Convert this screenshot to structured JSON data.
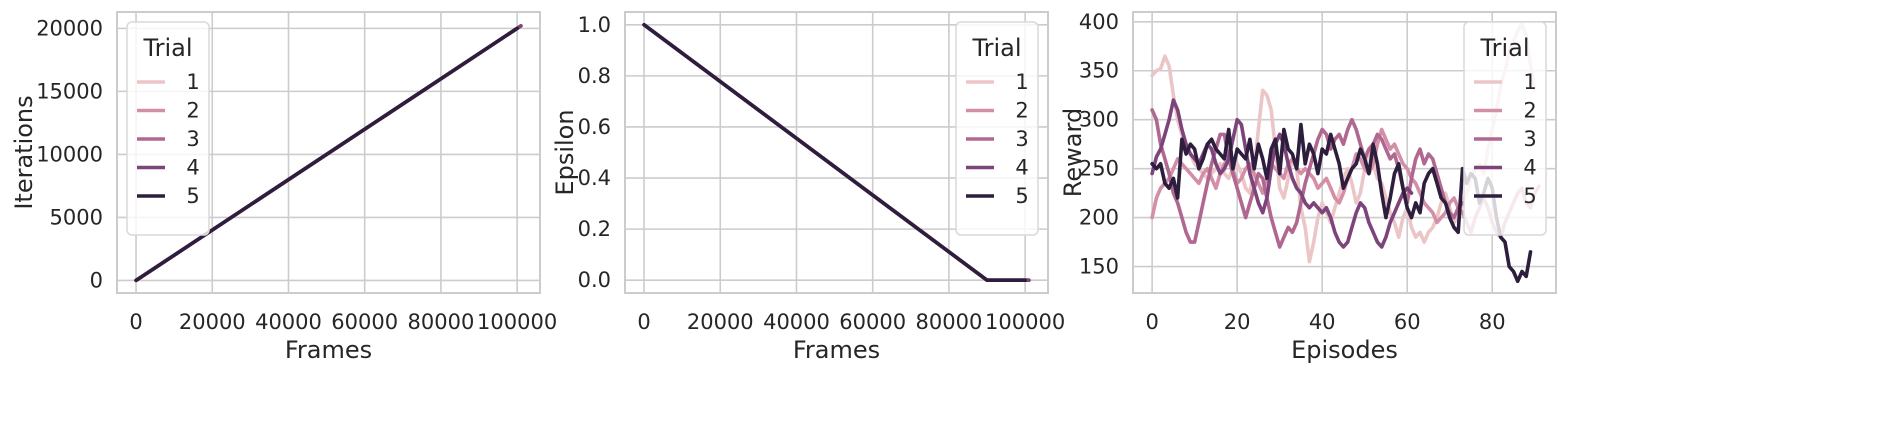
{
  "chart_data": [
    {
      "type": "line",
      "xlabel": "Frames",
      "ylabel": "Iterations",
      "xlim": [
        -5000,
        106000
      ],
      "ylim": [
        -1000,
        21300
      ],
      "xticks": [
        0,
        20000,
        40000,
        60000,
        80000,
        100000
      ],
      "yticks": [
        0,
        5000,
        10000,
        15000,
        20000
      ],
      "grid": true,
      "legend": {
        "title": "Trial",
        "placement": "top-left",
        "entries": [
          "1",
          "2",
          "3",
          "4",
          "5"
        ]
      },
      "series": [
        {
          "name": "1",
          "x": [
            0,
            101000
          ],
          "y": [
            0,
            20200
          ]
        },
        {
          "name": "2",
          "x": [
            0,
            101000
          ],
          "y": [
            0,
            20200
          ]
        },
        {
          "name": "3",
          "x": [
            0,
            101000
          ],
          "y": [
            0,
            20200
          ]
        },
        {
          "name": "4",
          "x": [
            0,
            101000
          ],
          "y": [
            0,
            20200
          ]
        },
        {
          "name": "5",
          "x": [
            0,
            100000
          ],
          "y": [
            0,
            20000
          ]
        }
      ]
    },
    {
      "type": "line",
      "xlabel": "Frames",
      "ylabel": "Epsilon",
      "xlim": [
        -5000,
        106000
      ],
      "ylim": [
        -0.05,
        1.05
      ],
      "xticks": [
        0,
        20000,
        40000,
        60000,
        80000,
        100000
      ],
      "yticks": [
        0.0,
        0.2,
        0.4,
        0.6,
        0.8,
        1.0
      ],
      "grid": true,
      "legend": {
        "title": "Trial",
        "placement": "top-right",
        "entries": [
          "1",
          "2",
          "3",
          "4",
          "5"
        ]
      },
      "series": [
        {
          "name": "1",
          "x": [
            0,
            90000,
            101000
          ],
          "y": [
            1.0,
            0.0,
            0.0
          ]
        },
        {
          "name": "2",
          "x": [
            0,
            90000,
            101000
          ],
          "y": [
            1.0,
            0.0,
            0.0
          ]
        },
        {
          "name": "3",
          "x": [
            0,
            90000,
            101000
          ],
          "y": [
            1.0,
            0.0,
            0.0
          ]
        },
        {
          "name": "4",
          "x": [
            0,
            90000,
            101000
          ],
          "y": [
            1.0,
            0.0,
            0.0
          ]
        },
        {
          "name": "5",
          "x": [
            0,
            90000,
            100000
          ],
          "y": [
            1.0,
            0.0,
            0.0
          ]
        }
      ]
    },
    {
      "type": "line",
      "xlabel": "Episodes",
      "ylabel": "Reward",
      "xlim": [
        -4.5,
        95
      ],
      "ylim": [
        123,
        410
      ],
      "xticks": [
        0,
        20,
        40,
        60,
        80
      ],
      "yticks": [
        150,
        200,
        250,
        300,
        350,
        400
      ],
      "grid": true,
      "legend": {
        "title": "Trial",
        "placement": "top-right",
        "entries": [
          "1",
          "2",
          "3",
          "4",
          "5"
        ]
      },
      "series": [
        {
          "name": "1",
          "y": [
            345,
            350,
            352,
            365,
            355,
            325,
            300,
            285,
            270,
            265,
            255,
            250,
            245,
            240,
            245,
            250,
            255,
            245,
            240,
            250,
            255,
            245,
            230,
            225,
            250,
            290,
            330,
            325,
            310,
            270,
            230,
            220,
            240,
            260,
            250,
            210,
            190,
            155,
            175,
            200,
            215,
            205,
            195,
            210,
            225,
            240,
            250,
            235,
            215,
            225,
            250,
            270,
            255,
            240,
            235,
            220,
            205,
            195,
            180,
            200,
            210,
            190,
            180,
            185,
            175,
            185,
            190,
            200,
            215,
            225,
            210,
            195,
            200,
            215,
            225,
            240,
            250,
            255,
            245,
            270,
            290,
            310,
            335,
            350,
            370,
            380,
            390,
            398,
            385,
            355,
            330
          ]
        },
        {
          "name": "2",
          "y": [
            200,
            220,
            230,
            235,
            240,
            250,
            260,
            255,
            250,
            245,
            240,
            235,
            245,
            250,
            240,
            230,
            245,
            255,
            260,
            250,
            235,
            240,
            250,
            255,
            245,
            235,
            225,
            240,
            255,
            250,
            245,
            240,
            255,
            260,
            250,
            245,
            250,
            245,
            240,
            230,
            235,
            240,
            230,
            220,
            215,
            225,
            240,
            250,
            265,
            260,
            250,
            245,
            255,
            275,
            290,
            280,
            270,
            275,
            265,
            255,
            250,
            240,
            235,
            225,
            215,
            210,
            205,
            195,
            200,
            205,
            215,
            220,
            210,
            205,
            195,
            185,
            200,
            210,
            220,
            210,
            195,
            185,
            180,
            195,
            205,
            215,
            225,
            230,
            215,
            210,
            225,
            232
          ]
        },
        {
          "name": "3",
          "y": [
            310,
            300,
            275,
            260,
            245,
            225,
            215,
            200,
            185,
            175,
            175,
            195,
            215,
            235,
            255,
            270,
            285,
            285,
            260,
            245,
            230,
            215,
            200,
            215,
            230,
            245,
            240,
            220,
            200,
            185,
            170,
            180,
            190,
            185,
            195,
            215,
            235,
            250,
            265,
            280,
            290,
            285,
            270,
            280,
            285,
            275,
            290,
            300,
            290,
            275,
            260,
            270,
            275,
            285,
            280,
            270,
            260,
            265,
            250,
            230,
            215,
            240,
            260,
            270,
            255,
            265,
            260,
            245,
            230,
            215,
            205,
            200,
            210,
            215
          ]
        },
        {
          "name": "4",
          "y": [
            245,
            262,
            270,
            285,
            300,
            320,
            310,
            290,
            275,
            265,
            260,
            255,
            265,
            275,
            270,
            255,
            245,
            250,
            260,
            280,
            300,
            295,
            270,
            245,
            230,
            215,
            205,
            220,
            250,
            275,
            285,
            275,
            255,
            240,
            230,
            225,
            215,
            210,
            215,
            210,
            205,
            210,
            200,
            185,
            175,
            170,
            175,
            190,
            205,
            215,
            210,
            195,
            185,
            175,
            170,
            180,
            195,
            205,
            215,
            225,
            230,
            225
          ]
        },
        {
          "name": "5",
          "y": [
            255,
            250,
            255,
            235,
            230,
            240,
            220,
            280,
            265,
            275,
            270,
            250,
            260,
            275,
            280,
            270,
            265,
            260,
            290,
            250,
            270,
            265,
            260,
            280,
            250,
            275,
            260,
            240,
            270,
            280,
            245,
            290,
            270,
            265,
            250,
            295,
            255,
            275,
            265,
            245,
            270,
            265,
            285,
            270,
            255,
            230,
            240,
            250,
            255,
            270,
            260,
            245,
            275,
            255,
            225,
            200,
            220,
            245,
            255,
            230,
            210,
            200,
            215,
            205,
            235,
            245,
            250,
            235,
            220,
            215,
            200,
            190,
            185,
            250,
            235,
            245,
            240,
            215,
            225,
            240,
            230,
            200,
            180,
            175,
            150,
            145,
            135,
            145,
            140,
            165
          ]
        }
      ]
    }
  ],
  "colors": {
    "series": [
      "#ecc6c7",
      "#d38fa8",
      "#b06891",
      "#7d447b",
      "#2d1e3e"
    ],
    "grid": "#cccccc",
    "frame": "#cccccc"
  }
}
